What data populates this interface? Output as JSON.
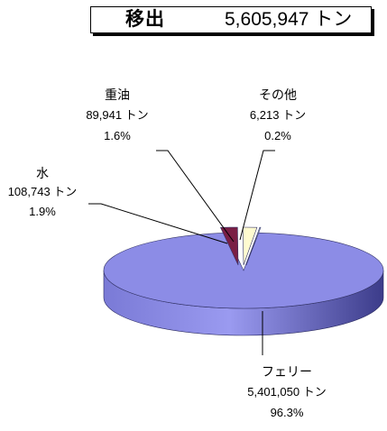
{
  "title": {
    "label": "移出",
    "total": "5,605,947 トン"
  },
  "chart_data": {
    "type": "pie",
    "subtype": "3d-exploded",
    "title": "移出 5,605,947 トン",
    "unit": "トン",
    "slices": [
      {
        "name": "フェリー",
        "value": 5401050,
        "value_text": "5,401,050 トン",
        "percent": 96.3,
        "percent_text": "96.3%",
        "color": "#8c8ce6",
        "side_color": "#5c5cb8"
      },
      {
        "name": "水",
        "value": 108743,
        "value_text": "108,743 トン",
        "percent": 1.9,
        "percent_text": "1.9%",
        "color": "#7a1f45",
        "side_color": "#4e1029"
      },
      {
        "name": "重油",
        "value": 89941,
        "value_text": "89,941 トン",
        "percent": 1.6,
        "percent_text": "1.6%",
        "color": "#fffbd0",
        "side_color": "#d8d4a8"
      },
      {
        "name": "その他",
        "value": 6213,
        "value_text": "6,213 トン",
        "percent": 0.2,
        "percent_text": "0.2%",
        "color": "#cfeef8",
        "side_color": "#a0c4cf"
      }
    ]
  }
}
